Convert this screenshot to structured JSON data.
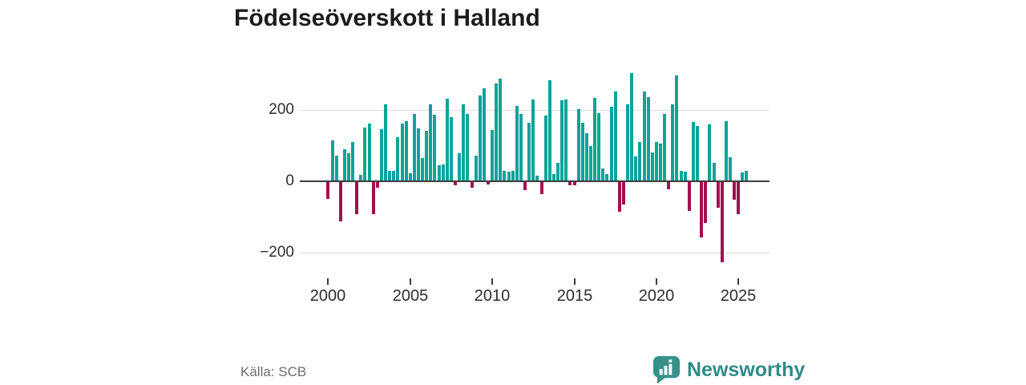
{
  "title": "Födelseöverskott i Halland",
  "source": "Källa: SCB",
  "branding": {
    "name": "Newsworthy",
    "icon": "newsworthy-bubble-chart-icon",
    "text_color": "#2E8C86",
    "icon_color": "#37918A"
  },
  "colors": {
    "positive_bar": "#0FA39A",
    "negative_bar": "#A1114F",
    "zero_line": "#3D3D3D",
    "gridline": "#DCDCDC",
    "axis_text": "#2E2E2E"
  },
  "chart_data": {
    "type": "bar",
    "title": "Födelseöverskott i Halland",
    "x_start": "2000-Q1",
    "x_end": "2025-Q3",
    "frequency": "quarterly",
    "values": [
      -48,
      113,
      70,
      -110,
      87,
      77,
      108,
      -91,
      15,
      148,
      160,
      -90,
      -16,
      145,
      215,
      27,
      26,
      122,
      161,
      167,
      20,
      187,
      146,
      64,
      139,
      215,
      184,
      43,
      45,
      230,
      178,
      -8,
      76,
      215,
      188,
      -16,
      70,
      238,
      260,
      -7,
      142,
      273,
      287,
      28,
      25,
      28,
      210,
      186,
      -22,
      162,
      228,
      13,
      -34,
      182,
      281,
      17,
      50,
      225,
      228,
      -10,
      -10,
      200,
      162,
      132,
      96,
      232,
      190,
      34,
      17,
      207,
      249,
      -83,
      -63,
      214,
      301,
      67,
      107,
      250,
      234,
      79,
      107,
      103,
      187,
      -20,
      215,
      294,
      28,
      25,
      -81,
      164,
      153,
      -155,
      -115,
      157,
      50,
      -71,
      -226,
      166,
      65,
      -49,
      -90,
      22,
      28
    ],
    "x_tick_labels": [
      "2000",
      "2005",
      "2010",
      "2015",
      "2020",
      "2025"
    ],
    "y_tick_labels": [
      "200",
      "0",
      "−200"
    ],
    "y_ticks": [
      200,
      0,
      -200
    ],
    "ylim": [
      -260,
      320
    ],
    "grid": "horizontal",
    "legend": "none",
    "xlabel": "",
    "ylabel": ""
  }
}
